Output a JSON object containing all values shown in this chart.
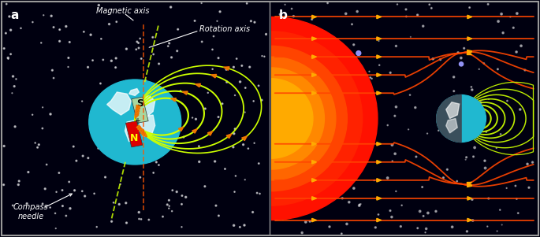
{
  "fig_width": 6.85,
  "fig_height": 3.01,
  "dpi": 100,
  "bg_color": "#000010",
  "panel_a_label": "a",
  "panel_b_label": "b",
  "label_color": "white",
  "label_fontsize": 11,
  "magnetic_axis_label": "Magnetic axis",
  "rotation_axis_label": "Rotation axis",
  "compass_label": "Compass\nneedle",
  "annotation_fontsize": 7,
  "earth_color": "#20B8D0",
  "magnet_top_color": "#90EE90",
  "magnet_bottom_color": "#DD0000",
  "field_line_color_a": "#CCFF00",
  "field_line_color_b_inner": "#CCFF00",
  "field_line_color_b_outer": "#FF4500",
  "arrow_head_color": "#FF3300",
  "sun_color_outer": "#FF2200",
  "sun_color_inner": "#FF8800",
  "star_color": "white",
  "border_color": "#999999",
  "panel_a_bg": "#000C1E",
  "panel_b_bg": "#000008"
}
